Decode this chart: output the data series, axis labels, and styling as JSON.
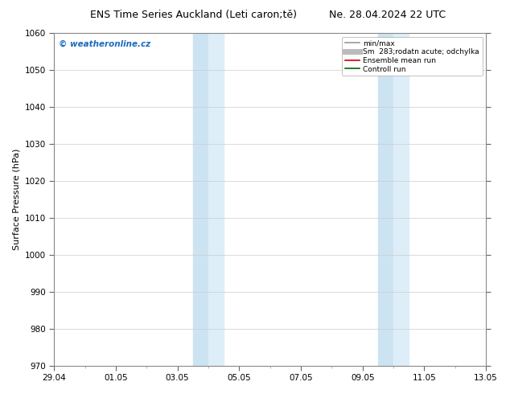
{
  "title_left": "ENS Time Series Auckland (Leti caron;tě)",
  "title_right": "Ne. 28.04.2024 22 UTC",
  "ylabel": "Surface Pressure (hPa)",
  "ylim": [
    970,
    1060
  ],
  "yticks": [
    970,
    980,
    990,
    1000,
    1010,
    1020,
    1030,
    1040,
    1050,
    1060
  ],
  "xlim_start": 0,
  "xlim_end": 14,
  "xtick_labels": [
    "29.04",
    "01.05",
    "03.05",
    "05.05",
    "07.05",
    "09.05",
    "11.05",
    "13.05"
  ],
  "xtick_positions": [
    0,
    2,
    4,
    6,
    8,
    10,
    12,
    14
  ],
  "shaded_bands": [
    {
      "xmin": 4.5,
      "xmax": 5.0
    },
    {
      "xmin": 5.0,
      "xmax": 5.5
    },
    {
      "xmin": 10.5,
      "xmax": 11.0
    },
    {
      "xmin": 11.0,
      "xmax": 11.5
    }
  ],
  "shade_color": "#ddeef8",
  "shade_color2": "#cce3f2",
  "watermark_text": "© weatheronline.cz",
  "watermark_color": "#1a6bbf",
  "legend_entries": [
    {
      "label": "min/max",
      "color": "#999999",
      "lw": 1.2
    },
    {
      "label": "Sm  283;rodatn acute; odchylka",
      "color": "#bbbbbb",
      "lw": 5
    },
    {
      "label": "Ensemble mean run",
      "color": "#cc0000",
      "lw": 1.2
    },
    {
      "label": "Controll run",
      "color": "#006600",
      "lw": 1.2
    }
  ],
  "bg_color": "#ffffff",
  "grid_color": "#cccccc",
  "title_fontsize": 9,
  "axis_label_fontsize": 8,
  "tick_fontsize": 7.5
}
